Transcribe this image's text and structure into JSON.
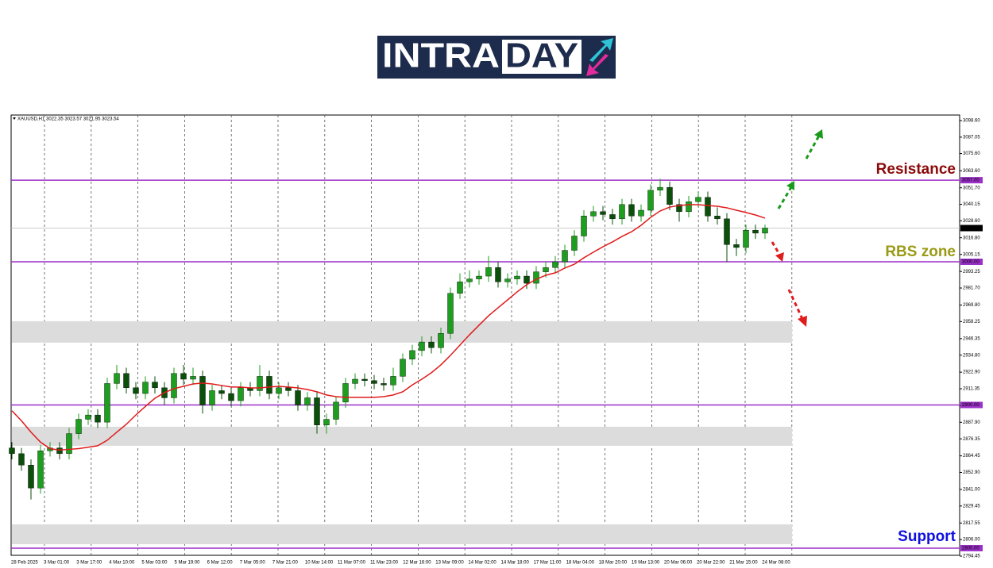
{
  "logo": {
    "part1": "INTRA",
    "part2": "DAY"
  },
  "chart_data": {
    "type": "candlestick",
    "symbol_info": "XAUUSD,H1  3022.35 3023.57 3021.95 3023.54",
    "time_labels": [
      "28 Feb 2025",
      "3 Mar 01:00",
      "3 Mar 17:00",
      "4 Mar 10:00",
      "5 Mar 03:00",
      "5 Mar 19:00",
      "6 Mar 12:00",
      "7 Mar 05:00",
      "7 Mar 21:00",
      "10 Mar 14:00",
      "11 Mar 07:00",
      "11 Mar 23:00",
      "12 Mar 16:00",
      "13 Mar 09:00",
      "14 Mar 02:00",
      "14 Mar 18:00",
      "17 Mar 11:00",
      "18 Mar 04:00",
      "18 Mar 20:00",
      "19 Mar 13:00",
      "20 Mar 06:00",
      "20 Mar 22:00",
      "21 Mar 15:00",
      "24 Mar 08:00"
    ],
    "open": [
      2870,
      2866,
      2858,
      2842,
      2868,
      2870,
      2866,
      2880,
      2890,
      2893,
      2888,
      2915,
      2922,
      2912,
      2908,
      2916,
      2912,
      2905,
      2922,
      2918,
      2920,
      2900,
      2910,
      2908,
      2903,
      2912,
      2910,
      2920,
      2908,
      2912,
      2910,
      2900,
      2905,
      2886,
      2890,
      2902,
      2915,
      2918,
      2917,
      2915,
      2914,
      2920,
      2932,
      2938,
      2944,
      2940,
      2950,
      2978,
      2986,
      2988,
      2990,
      2996,
      2986,
      2988,
      2990,
      2985,
      2993,
      2996,
      3000,
      3008,
      3018,
      3032,
      3035,
      3033,
      3030,
      3040,
      3032,
      3036,
      3050,
      3052,
      3040,
      3035,
      3042,
      3045,
      3032,
      3030,
      3012,
      3010,
      3022,
      3020
    ],
    "high": [
      2874,
      2870,
      2862,
      2872,
      2874,
      2874,
      2884,
      2894,
      2897,
      2897,
      2919,
      2928,
      2926,
      2916,
      2920,
      2920,
      2916,
      2926,
      2928,
      2926,
      2924,
      2914,
      2914,
      2912,
      2916,
      2916,
      2928,
      2924,
      2916,
      2916,
      2914,
      2909,
      2909,
      2894,
      2906,
      2919,
      2922,
      2922,
      2921,
      2919,
      2926,
      2936,
      2942,
      2948,
      2948,
      2954,
      2982,
      2992,
      2994,
      2994,
      3004,
      3000,
      2992,
      2994,
      2994,
      2997,
      3000,
      3004,
      3012,
      3022,
      3036,
      3039,
      3039,
      3037,
      3044,
      3044,
      3040,
      3054,
      3058,
      3056,
      3044,
      3046,
      3049,
      3049,
      3038,
      3034,
      3016,
      3026,
      3026,
      3026
    ],
    "low": [
      2862,
      2854,
      2834,
      2838,
      2864,
      2862,
      2862,
      2876,
      2886,
      2884,
      2884,
      2911,
      2908,
      2904,
      2904,
      2908,
      2900,
      2901,
      2914,
      2914,
      2894,
      2896,
      2904,
      2899,
      2899,
      2906,
      2906,
      2904,
      2904,
      2906,
      2896,
      2896,
      2880,
      2880,
      2886,
      2898,
      2911,
      2913,
      2911,
      2910,
      2910,
      2916,
      2928,
      2934,
      2936,
      2936,
      2946,
      2974,
      2982,
      2984,
      2986,
      2982,
      2982,
      2984,
      2981,
      2981,
      2989,
      2992,
      2996,
      3004,
      3014,
      3028,
      3029,
      3026,
      3026,
      3028,
      3028,
      3032,
      3046,
      3036,
      3028,
      3031,
      3038,
      3028,
      3026,
      3000,
      3004,
      3006,
      3016,
      3016
    ],
    "close": [
      2866,
      2858,
      2842,
      2868,
      2870,
      2866,
      2880,
      2890,
      2893,
      2888,
      2915,
      2922,
      2912,
      2908,
      2916,
      2912,
      2905,
      2922,
      2918,
      2920,
      2900,
      2910,
      2908,
      2903,
      2912,
      2910,
      2920,
      2908,
      2912,
      2910,
      2900,
      2905,
      2886,
      2890,
      2902,
      2915,
      2918,
      2917,
      2915,
      2914,
      2920,
      2932,
      2938,
      2944,
      2940,
      2950,
      2978,
      2986,
      2988,
      2990,
      2996,
      2986,
      2988,
      2990,
      2985,
      2993,
      2996,
      3000,
      3008,
      3018,
      3032,
      3035,
      3033,
      3030,
      3040,
      3032,
      3036,
      3050,
      3052,
      3040,
      3035,
      3042,
      3045,
      3032,
      3030,
      3012,
      3010,
      3022,
      3020,
      3023.54
    ],
    "up_color": "#1e9e1e",
    "down_color": "#0a4f0a",
    "ma": {
      "color": "#e01b1b",
      "values": [
        2896,
        2889,
        2881,
        2874,
        2869.5,
        2868.5,
        2869,
        2869.5,
        2870.5,
        2871.5,
        2875.4,
        2881,
        2886.5,
        2893,
        2899,
        2904.7,
        2908.6,
        2911.4,
        2913,
        2914.7,
        2915.3,
        2914.7,
        2913.6,
        2912.5,
        2912.5,
        2911.9,
        2911.9,
        2912.5,
        2913,
        2912.5,
        2911.9,
        2910.8,
        2909.2,
        2907,
        2905.8,
        2905.3,
        2905.3,
        2905.3,
        2905.3,
        2905.8,
        2907,
        2909.2,
        2914,
        2918,
        2922.5,
        2928,
        2934.6,
        2941.8,
        2949,
        2955.7,
        2962.3,
        2967.9,
        2973.4,
        2979,
        2984,
        2987.8,
        2990.6,
        2992.3,
        2995.6,
        2998.3,
        3002.8,
        3006.7,
        3010.5,
        3013.9,
        3017.7,
        3021,
        3025.5,
        3031,
        3035.5,
        3038.2,
        3039.3,
        3039.9,
        3039.9,
        3039.3,
        3038.8,
        3037.7,
        3036,
        3034.4,
        3032.7,
        3030.5
      ]
    },
    "ylim": [
      2795,
      3102.5
    ],
    "yticks": [
      {
        "value": 3098.6,
        "label": "3098.60"
      },
      {
        "value": 3087.05,
        "label": "3087.05"
      },
      {
        "value": 3075.6,
        "label": "3075.60"
      },
      {
        "value": 3063.6,
        "label": "3063.60"
      },
      {
        "value": 3051.7,
        "label": "3051.70"
      },
      {
        "value": 3040.15,
        "label": "3040.15"
      },
      {
        "value": 3028.6,
        "label": "3028.60"
      },
      {
        "value": 3016.8,
        "label": "3016.80"
      },
      {
        "value": 3005.15,
        "label": "3005.15"
      },
      {
        "value": 2993.25,
        "label": "2993.25"
      },
      {
        "value": 2981.7,
        "label": "2981.70"
      },
      {
        "value": 2969.8,
        "label": "2969.80"
      },
      {
        "value": 2958.25,
        "label": "2958.25"
      },
      {
        "value": 2946.35,
        "label": "2946.35"
      },
      {
        "value": 2934.8,
        "label": "2934.80"
      },
      {
        "value": 2922.9,
        "label": "2922.90"
      },
      {
        "value": 2911.35,
        "label": "2911.35"
      },
      {
        "value": 2899.45,
        "label": "2899.45"
      },
      {
        "value": 2887.9,
        "label": "2887.90"
      },
      {
        "value": 2876.35,
        "label": "2876.35"
      },
      {
        "value": 2864.45,
        "label": "2864.45"
      },
      {
        "value": 2852.9,
        "label": "2852.90"
      },
      {
        "value": 2841,
        "label": "2841.00"
      },
      {
        "value": 2829.45,
        "label": "2829.45"
      },
      {
        "value": 2817.55,
        "label": "2817.55"
      },
      {
        "value": 2806,
        "label": "2806.00"
      },
      {
        "value": 2794.45,
        "label": "2794.45"
      }
    ],
    "levels": [
      {
        "value": 3057,
        "label": "3057.00"
      },
      {
        "value": 3000,
        "label": "3000.00"
      },
      {
        "value": 2900,
        "label": "2900.00"
      },
      {
        "value": 2800,
        "label": "2800.00"
      }
    ],
    "level_color": "#9b30c8",
    "zones": [
      [
        2943.5,
        2958.5
      ],
      [
        2871.5,
        2884.8
      ],
      [
        2802.8,
        2816.6
      ]
    ],
    "zone_color": "#dcdcdc",
    "current_price": {
      "value": 3023.54,
      "label": "3023.54"
    },
    "annotations": [
      {
        "text": "Resistance",
        "color": "#8b0a0a"
      },
      {
        "text": "RBS zone",
        "color": "#9a9a16"
      },
      {
        "text": "Support",
        "color": "#1010e0"
      }
    ]
  }
}
